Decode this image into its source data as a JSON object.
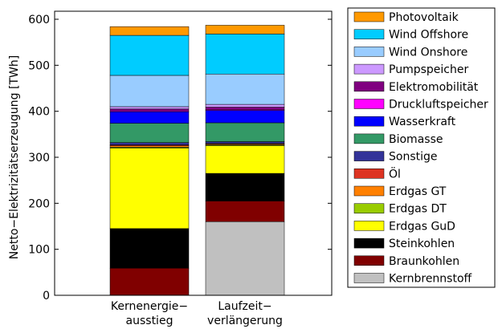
{
  "chart_data": {
    "type": "stacked_bar",
    "ylabel": "Netto−Elektrizitätserzeugung [TWh]",
    "categories": [
      "Kernenergie−\nausstieg",
      "Laufzeit−\nverlängerung"
    ],
    "ylim": [
      0,
      600
    ],
    "yticks": [
      0,
      100,
      200,
      300,
      400,
      500,
      600
    ],
    "series": [
      {
        "name": "Kernbrennstoff",
        "color": "#c0c0c0",
        "values": [
          0,
          160
        ]
      },
      {
        "name": "Braunkohlen",
        "color": "#800000",
        "values": [
          59,
          45
        ]
      },
      {
        "name": "Steinkohlen",
        "color": "#000000",
        "values": [
          86,
          60
        ]
      },
      {
        "name": "Erdgas GuD",
        "color": "#ffff00",
        "values": [
          175,
          60
        ]
      },
      {
        "name": "Erdgas DT",
        "color": "#99cc00",
        "values": [
          2,
          2
        ]
      },
      {
        "name": "Erdgas GT",
        "color": "#ff8000",
        "values": [
          3,
          2
        ]
      },
      {
        "name": "Öl",
        "color": "#dd3322",
        "values": [
          2,
          1
        ]
      },
      {
        "name": "Sonstige",
        "color": "#333399",
        "values": [
          5,
          4
        ]
      },
      {
        "name": "Biomasse",
        "color": "#339966",
        "values": [
          42,
          41
        ]
      },
      {
        "name": "Wasserkraft",
        "color": "#0000ff",
        "values": [
          25,
          27
        ]
      },
      {
        "name": "Druckluftspeicher",
        "color": "#ff00ff",
        "values": [
          2,
          2
        ]
      },
      {
        "name": "Elektromobilität",
        "color": "#800080",
        "values": [
          4,
          5
        ]
      },
      {
        "name": "Pumpspeicher",
        "color": "#cc99ff",
        "values": [
          5,
          6
        ]
      },
      {
        "name": "Wind Onshore",
        "color": "#99ccff",
        "values": [
          68,
          66
        ]
      },
      {
        "name": "Wind Offshore",
        "color": "#00ccff",
        "values": [
          87,
          87
        ]
      },
      {
        "name": "Photovoltaik",
        "color": "#ff9900",
        "values": [
          19,
          19
        ]
      }
    ]
  }
}
